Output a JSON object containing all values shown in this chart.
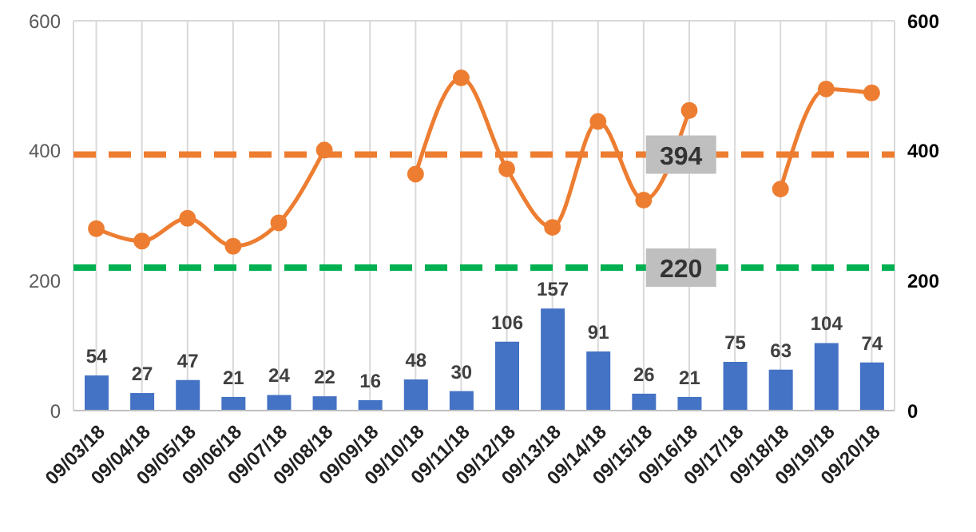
{
  "chart_data": {
    "type": "bar",
    "categories": [
      "09/03/18",
      "09/04/18",
      "09/05/18",
      "09/06/18",
      "09/07/18",
      "09/08/18",
      "09/09/18",
      "09/10/18",
      "09/11/18",
      "09/12/18",
      "09/13/18",
      "09/14/18",
      "09/15/18",
      "09/16/18",
      "09/17/18",
      "09/18/18",
      "09/19/18",
      "09/20/18"
    ],
    "series": [
      {
        "color": "#4472c4",
        "values": [
          54,
          27,
          47,
          21,
          24,
          22,
          16,
          48,
          30,
          106,
          157,
          91,
          26,
          21,
          75,
          63,
          104,
          74
        ],
        "value_labels": [
          "54",
          "27",
          "47",
          "21",
          "24",
          "22",
          "16",
          "48",
          "30",
          "106",
          "157",
          "91",
          "26",
          "21",
          "75",
          "63",
          "104",
          "74"
        ]
      },
      {
        "type": "line",
        "color": "#ed7d31",
        "values": [
          280,
          261,
          296,
          253,
          289,
          401,
          null,
          364,
          512,
          372,
          282,
          445,
          324,
          462,
          null,
          341,
          495,
          489
        ]
      }
    ],
    "ylim": [
      0,
      600
    ],
    "yticks": [
      0,
      200,
      400,
      600
    ],
    "y2lim": [
      0,
      600
    ],
    "y2ticks": [
      0,
      200,
      400,
      600
    ],
    "ref_lines": [
      {
        "axis": "y",
        "value": 394,
        "label": "394",
        "color": "#ed7d31",
        "line_style": "dashed"
      },
      {
        "axis": "y",
        "value": 220,
        "label": "220",
        "color": "#00b050",
        "line_style": "dashed"
      }
    ],
    "grid": true,
    "marker": "circle"
  }
}
